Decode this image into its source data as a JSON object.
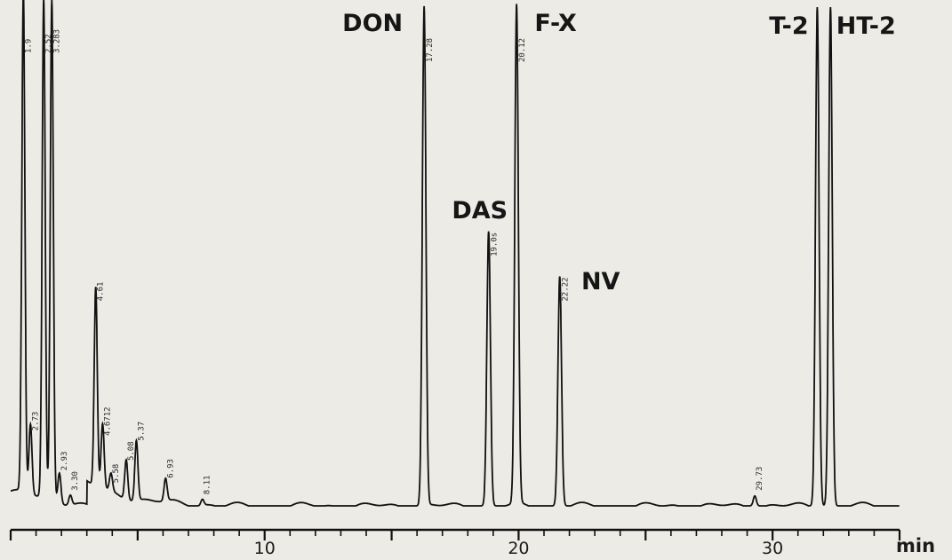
{
  "chart_data": {
    "type": "line",
    "xlabel": "min",
    "xlim": [
      0,
      35
    ],
    "x_ticks": [
      {
        "value": 10,
        "label": "10"
      },
      {
        "value": 20,
        "label": "20"
      },
      {
        "value": 30,
        "label": "30"
      }
    ],
    "peaks": [
      {
        "name": "DON",
        "rt": 16.28,
        "rt_label": "17.28",
        "height": 1.0
      },
      {
        "name": "DAS",
        "rt": 18.82,
        "rt_label": "19.0s",
        "height": 0.55
      },
      {
        "name": "F-X",
        "rt": 19.92,
        "rt_label": "20.12",
        "height": 1.0
      },
      {
        "name": "NV",
        "rt": 21.62,
        "rt_label": "22.22",
        "height": 0.46
      },
      {
        "name": "T-2",
        "rt": 31.76,
        "rt_label": "",
        "height": 1.0
      },
      {
        "name": "HT-2",
        "rt": 32.28,
        "rt_label": "",
        "height": 1.0
      }
    ],
    "minor_peaks": [
      {
        "rt": 0.5,
        "height": 1.0,
        "label": "1.9"
      },
      {
        "rt": 0.78,
        "height": 0.14,
        "label": "2.73"
      },
      {
        "rt": 1.3,
        "height": 1.0,
        "label": "2.52"
      },
      {
        "rt": 1.92,
        "height": 0.06,
        "label": "2.93"
      },
      {
        "rt": 2.35,
        "height": 0.02,
        "label": "3.30"
      },
      {
        "rt": 1.62,
        "height": 1.0,
        "label": "3.283"
      },
      {
        "rt": 3.35,
        "height": 0.4,
        "label": "4.61"
      },
      {
        "rt": 3.62,
        "height": 0.13,
        "label": "4.6712"
      },
      {
        "rt": 3.95,
        "height": 0.035,
        "label": "5.58"
      },
      {
        "rt": 4.55,
        "height": 0.08,
        "label": "5.08"
      },
      {
        "rt": 4.95,
        "height": 0.12,
        "label": "5.37"
      },
      {
        "rt": 6.1,
        "height": 0.045,
        "label": "6.93"
      },
      {
        "rt": 7.55,
        "height": 0.012,
        "label": "8.11"
      },
      {
        "rt": 29.3,
        "height": 0.02,
        "label": "29.73"
      }
    ]
  }
}
